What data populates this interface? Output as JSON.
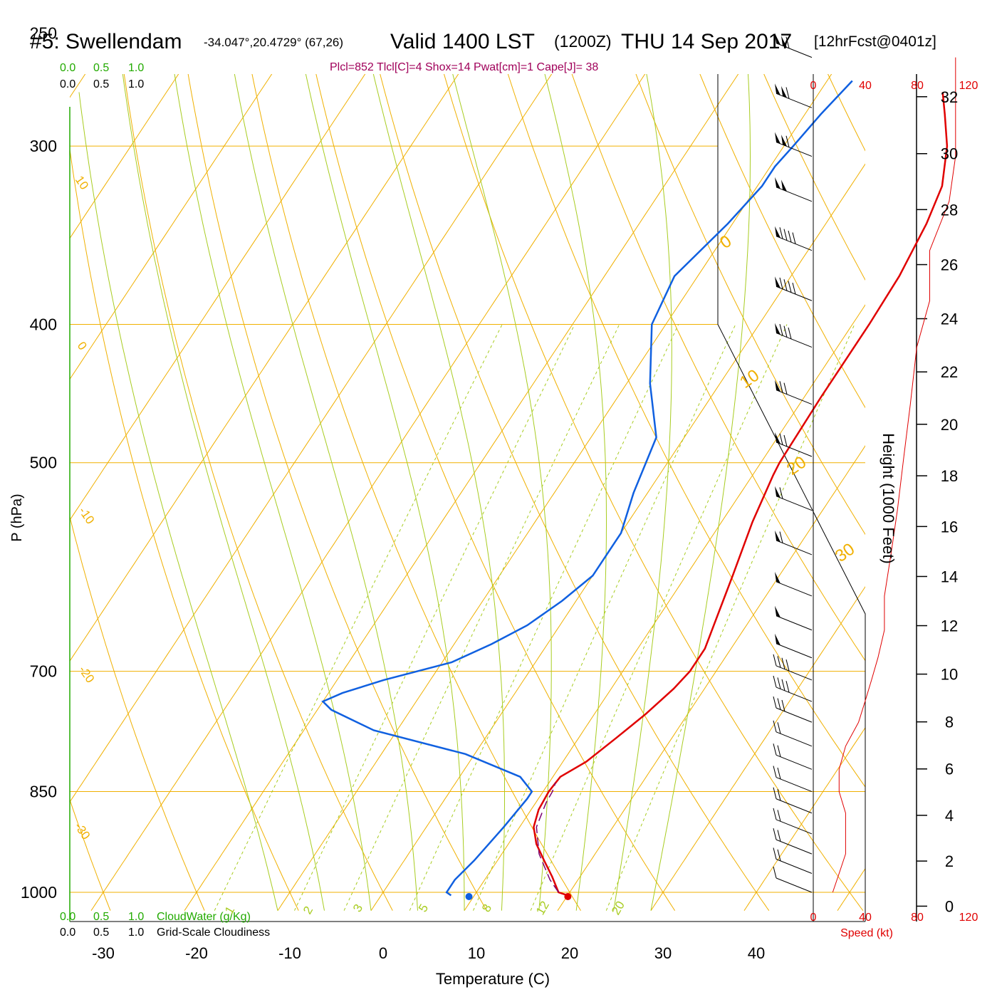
{
  "header": {
    "station": "#5: Swellendam",
    "coords": "-34.047°,20.4729° (67,26)",
    "valid": "Valid 1400 LST",
    "utc": "(1200Z)",
    "date": "THU 14 Sep 2017",
    "forecast": "[12hrFcst@0401z]",
    "indices": "Plcl=852 Tlcl[C]=4 Shox=14 Pwat[cm]=1 Cape[J]= 38"
  },
  "colors": {
    "isotherm": "#f0b000",
    "dry_adiabat": "#f0b000",
    "moist_adiabat": "#a8cc20",
    "mixing_ratio": "#a8cc20",
    "temperature": "#e00000",
    "dewpoint": "#1060e0",
    "parcel": "#7a0070",
    "height": "#e00000",
    "cloud_water": "#22aa00",
    "indices_text": "#a0005a"
  },
  "chart_data": {
    "type": "line",
    "xlabel": "Temperature (C)",
    "ylabel": "P (hPa)",
    "y2label": "Height (1000 Feet)",
    "x_ticks": [
      -30,
      -20,
      -10,
      0,
      10,
      20,
      30,
      40
    ],
    "p_ticks": [
      250,
      300,
      400,
      500,
      700,
      850,
      1000
    ],
    "height_ticks": [
      0,
      2,
      4,
      6,
      8,
      10,
      12,
      14,
      16,
      18,
      20,
      22,
      24,
      26,
      28,
      30,
      32
    ],
    "speed_ticks": [
      "0",
      "40",
      "80",
      "120"
    ],
    "speed_label": "Speed (kt)",
    "cloud_scale_top": [
      "0.0",
      "0.5",
      "1.0"
    ],
    "cloud_scale_top_black": [
      "0.0",
      "0.5",
      "1.0"
    ],
    "cloud_scale_bottom": [
      "0.0",
      "0.5",
      "1.0"
    ],
    "cloud_scale_bottom_black": [
      "0.0",
      "0.5",
      "1.0"
    ],
    "cloudwater_label": "CloudWater (g/Kg)",
    "cloudiness_label": "Grid-Scale Cloudiness",
    "dry_adiabat_labels": [
      "10",
      "0",
      "-10",
      "-20",
      "-30"
    ],
    "isotherm_labels_right": [
      "0",
      "10",
      "20",
      "30"
    ],
    "mixing_ratio_labels": [
      "1",
      "2",
      "3",
      "5",
      "8",
      "12",
      "20"
    ],
    "temperature": [
      [
        20,
        1005
      ],
      [
        18.8,
        1000
      ],
      [
        17,
        975
      ],
      [
        15,
        950
      ],
      [
        13,
        925
      ],
      [
        11.5,
        900
      ],
      [
        10.8,
        875
      ],
      [
        10.6,
        850
      ],
      [
        10.8,
        830
      ],
      [
        12.5,
        810
      ],
      [
        14,
        780
      ],
      [
        15.5,
        750
      ],
      [
        16.7,
        720
      ],
      [
        17.2,
        700
      ],
      [
        17.2,
        675
      ],
      [
        16.5,
        650
      ],
      [
        15,
        600
      ],
      [
        13.3,
        550
      ],
      [
        12.2,
        510
      ],
      [
        12,
        500
      ],
      [
        11.8,
        450
      ],
      [
        11.8,
        400
      ],
      [
        11.6,
        370
      ],
      [
        10.8,
        340
      ],
      [
        9.8,
        320
      ],
      [
        7.5,
        300
      ],
      [
        5,
        285
      ],
      [
        3.2,
        275
      ]
    ],
    "dewpoint": [
      [
        7.5,
        1005
      ],
      [
        6.8,
        1000
      ],
      [
        6.8,
        980
      ],
      [
        7.5,
        950
      ],
      [
        8.3,
        900
      ],
      [
        8.8,
        860
      ],
      [
        8.8,
        850
      ],
      [
        6.5,
        830
      ],
      [
        -1,
        800
      ],
      [
        -12.5,
        770
      ],
      [
        -18.5,
        745
      ],
      [
        -20,
        735
      ],
      [
        -18.5,
        725
      ],
      [
        -15,
        710
      ],
      [
        -9,
        690
      ],
      [
        -6,
        670
      ],
      [
        -3.5,
        650
      ],
      [
        -1.5,
        625
      ],
      [
        0,
        600
      ],
      [
        0,
        560
      ],
      [
        -1.5,
        525
      ],
      [
        -3,
        480
      ],
      [
        -7.5,
        440
      ],
      [
        -11.5,
        400
      ],
      [
        -12.5,
        370
      ],
      [
        -10.5,
        340
      ],
      [
        -9.5,
        320
      ],
      [
        -9.5,
        310
      ],
      [
        -9,
        300
      ],
      [
        -8.3,
        285
      ],
      [
        -7.3,
        270
      ]
    ],
    "parcel": [
      [
        18.8,
        1000
      ],
      [
        17,
        980
      ],
      [
        14,
        940
      ],
      [
        11.8,
        900
      ],
      [
        11.4,
        880
      ],
      [
        11.1,
        865
      ],
      [
        11,
        850
      ],
      [
        10.7,
        838
      ]
    ],
    "surface_temperature": 19.8,
    "surface_dewpoint": 9.2,
    "height_curve": [
      [
        0.0,
        1000
      ],
      [
        2,
        940
      ],
      [
        4,
        880
      ],
      [
        6,
        830
      ],
      [
        8,
        780
      ],
      [
        10,
        720
      ],
      [
        12,
        660
      ],
      [
        14,
        610
      ],
      [
        16,
        560
      ],
      [
        18,
        510
      ],
      [
        20,
        470
      ],
      [
        22,
        430
      ],
      [
        24,
        395
      ],
      [
        26,
        360
      ],
      [
        28,
        330
      ],
      [
        30,
        300
      ],
      [
        32,
        275
      ]
    ],
    "winds": [
      {
        "p": 260,
        "kt": 110
      },
      {
        "p": 282,
        "kt": 110
      },
      {
        "p": 305,
        "kt": 110
      },
      {
        "p": 328,
        "kt": 105
      },
      {
        "p": 355,
        "kt": 90
      },
      {
        "p": 385,
        "kt": 90
      },
      {
        "p": 415,
        "kt": 80
      },
      {
        "p": 455,
        "kt": 75
      },
      {
        "p": 495,
        "kt": 70
      },
      {
        "p": 540,
        "kt": 65
      },
      {
        "p": 580,
        "kt": 60
      },
      {
        "p": 620,
        "kt": 55
      },
      {
        "p": 655,
        "kt": 55
      },
      {
        "p": 685,
        "kt": 50
      },
      {
        "p": 710,
        "kt": 45
      },
      {
        "p": 735,
        "kt": 40
      },
      {
        "p": 760,
        "kt": 35
      },
      {
        "p": 790,
        "kt": 25
      },
      {
        "p": 820,
        "kt": 20
      },
      {
        "p": 850,
        "kt": 20
      },
      {
        "p": 880,
        "kt": 25
      },
      {
        "p": 910,
        "kt": 25
      },
      {
        "p": 940,
        "kt": 25
      },
      {
        "p": 970,
        "kt": 20
      },
      {
        "p": 1000,
        "kt": 15
      }
    ]
  }
}
